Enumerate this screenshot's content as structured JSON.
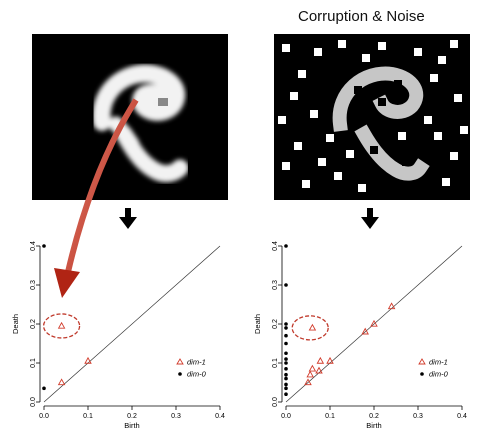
{
  "title": "Corruption & Noise",
  "chart_data": [
    {
      "type": "scatter",
      "xlabel": "Birth",
      "ylabel": "Death",
      "xlim": [
        0,
        0.4
      ],
      "ylim": [
        0,
        0.4
      ],
      "xticks": [
        "0.0",
        "0.1",
        "0.2",
        "0.3",
        "0.4"
      ],
      "yticks": [
        "0.0",
        "0.1",
        "0.2",
        "0.3",
        "0.4"
      ],
      "diagonal": true,
      "legend": "right",
      "series": [
        {
          "name": "dim-1",
          "marker": "triangle",
          "color": "#d23c2c",
          "points": [
            [
              0.04,
              0.195
            ],
            [
              0.04,
              0.05
            ],
            [
              0.1,
              0.105
            ]
          ]
        },
        {
          "name": "dim-0",
          "marker": "dot",
          "color": "#000000",
          "points": [
            [
              0.0,
              0.4
            ],
            [
              0.0,
              0.035
            ]
          ]
        }
      ],
      "highlight": {
        "x": 0.04,
        "y": 0.195
      }
    },
    {
      "type": "scatter",
      "xlabel": "Birth",
      "ylabel": "Death",
      "xlim": [
        0,
        0.4
      ],
      "ylim": [
        0,
        0.4
      ],
      "xticks": [
        "0.0",
        "0.1",
        "0.2",
        "0.3",
        "0.4"
      ],
      "yticks": [
        "0.0",
        "0.1",
        "0.2",
        "0.3",
        "0.4"
      ],
      "diagonal": true,
      "legend": "right",
      "series": [
        {
          "name": "dim-1",
          "marker": "triangle",
          "color": "#d23c2c",
          "points": [
            [
              0.05,
              0.05
            ],
            [
              0.055,
              0.07
            ],
            [
              0.06,
              0.085
            ],
            [
              0.075,
              0.08
            ],
            [
              0.078,
              0.105
            ],
            [
              0.1,
              0.105
            ],
            [
              0.18,
              0.18
            ],
            [
              0.2,
              0.2
            ],
            [
              0.24,
              0.245
            ],
            [
              0.06,
              0.19
            ]
          ]
        },
        {
          "name": "dim-0",
          "marker": "dot",
          "color": "#000000",
          "points": [
            [
              0.0,
              0.4
            ],
            [
              0.0,
              0.3
            ],
            [
              0.0,
              0.2
            ],
            [
              0.0,
              0.19
            ],
            [
              0.0,
              0.17
            ],
            [
              0.0,
              0.15
            ],
            [
              0.0,
              0.125
            ],
            [
              0.0,
              0.11
            ],
            [
              0.0,
              0.1
            ],
            [
              0.0,
              0.085
            ],
            [
              0.0,
              0.07
            ],
            [
              0.0,
              0.06
            ],
            [
              0.0,
              0.045
            ],
            [
              0.0,
              0.035
            ],
            [
              0.0,
              0.02
            ]
          ]
        }
      ],
      "highlight": {
        "x": 0.055,
        "y": 0.19
      }
    }
  ],
  "legend_labels": [
    "dim-1",
    "dim-0"
  ]
}
